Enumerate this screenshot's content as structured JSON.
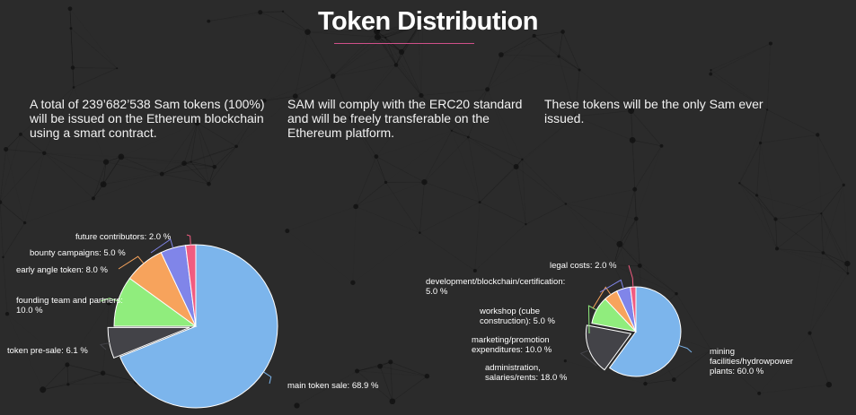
{
  "header": {
    "title": "Token Distribution"
  },
  "intro": {
    "col1": "A total of 239’682’538 Sam tokens (100%) will be issued on the Ethereum blockchain using a smart contract.",
    "col2": "SAM will comply with the ERC20 standard and will be freely transferable on the Ethereum platform.",
    "col3": "These tokens will be the only Sam ever issued."
  },
  "chart_data": [
    {
      "type": "pie",
      "title": "",
      "slices": [
        {
          "label": "main token sale: 68.9 %",
          "value": 68.9,
          "color": "#7cb5ec"
        },
        {
          "label": "token pre-sale: 6.1 %",
          "value": 6.1,
          "color": "#434348"
        },
        {
          "label": "founding team and partners: 10.0 %",
          "value": 10.0,
          "color": "#90ed7d"
        },
        {
          "label": "early angle token: 8.0 %",
          "value": 8.0,
          "color": "#f7a35c"
        },
        {
          "label": "bounty campaigns: 5.0 %",
          "value": 5.0,
          "color": "#8085e9"
        },
        {
          "label": "future contributors: 2.0 %",
          "value": 2.0,
          "color": "#f15c80"
        }
      ]
    },
    {
      "type": "pie",
      "title": "",
      "slices": [
        {
          "label": "mining facilities/hydrowpower plants: 60.0 %",
          "value": 60.0,
          "color": "#7cb5ec"
        },
        {
          "label": "administration, salaries/rents: 18.0 %",
          "value": 18.0,
          "color": "#434348"
        },
        {
          "label": "marketing/promotion expenditures: 10.0 %",
          "value": 10.0,
          "color": "#90ed7d"
        },
        {
          "label": "workshop (cube construction): 5.0 %",
          "value": 5.0,
          "color": "#f7a35c"
        },
        {
          "label": "development/blockchain/certification: 5.0 %",
          "value": 5.0,
          "color": "#8085e9"
        },
        {
          "label": "legal costs: 2.0 %",
          "value": 2.0,
          "color": "#f15c80"
        }
      ]
    }
  ]
}
